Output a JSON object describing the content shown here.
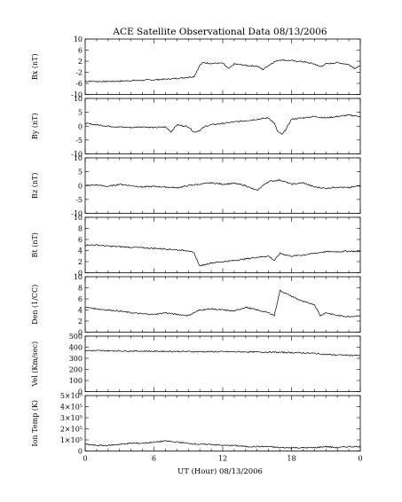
{
  "chart_data": {
    "type": "line",
    "title": "ACE Satellite Observational Data   08/13/2006",
    "xlabel": "UT (Hour)   08/13/2006",
    "x_ticks": [
      "0",
      "6",
      "12",
      "18",
      "0"
    ],
    "xlim": [
      0,
      24
    ],
    "panels": [
      {
        "id": "bx",
        "ylabel": "Bx (nT)",
        "ylim": [
          -10,
          10
        ],
        "y_ticks": [
          {
            "v": 10,
            "t": "10"
          },
          {
            "v": 6,
            "t": "6"
          },
          {
            "v": 2,
            "t": "2"
          },
          {
            "v": -2,
            "t": "-2"
          },
          {
            "v": -6,
            "t": "-6"
          },
          {
            "v": -10,
            "t": "-10"
          }
        ],
        "series": [
          {
            "x": [
              0,
              1,
              2,
              3,
              4,
              5,
              6,
              7,
              8,
              9,
              9.5,
              10,
              10.3,
              11,
              12,
              12.5,
              13,
              14,
              15,
              15.5,
              16,
              16.5,
              17,
              18,
              19,
              20,
              20.5,
              21,
              22,
              23,
              23.5,
              24
            ],
            "y": [
              -5.2,
              -5.3,
              -5.3,
              -5.2,
              -5.0,
              -4.9,
              -4.7,
              -4.5,
              -4.2,
              -3.8,
              -3.5,
              0.5,
              1.5,
              1.2,
              1.3,
              -0.8,
              1.0,
              0.5,
              0.2,
              -1.0,
              0.5,
              1.8,
              2.5,
              2.2,
              1.8,
              1.0,
              0.0,
              1.0,
              1.5,
              0.8,
              -0.5,
              0.2
            ]
          }
        ]
      },
      {
        "id": "by",
        "ylabel": "By (nT)",
        "ylim": [
          -10,
          10
        ],
        "y_ticks": [
          {
            "v": 10,
            "t": "10"
          },
          {
            "v": 5,
            "t": "5"
          },
          {
            "v": 0,
            "t": "0"
          },
          {
            "v": -5,
            "t": "-5"
          },
          {
            "v": -10,
            "t": "-10"
          }
        ],
        "series": [
          {
            "x": [
              0,
              1,
              2,
              3,
              4,
              5,
              6,
              7,
              7.5,
              8,
              9,
              9.5,
              10,
              10.5,
              11,
              12,
              13,
              14,
              15,
              16,
              16.5,
              16.8,
              17.2,
              17.6,
              18,
              19,
              20,
              21,
              22,
              23,
              24
            ],
            "y": [
              1.0,
              0.5,
              0.0,
              -0.3,
              -0.5,
              -0.2,
              -0.5,
              -0.3,
              -2.0,
              0.5,
              -0.2,
              -2.2,
              -1.5,
              0.0,
              0.5,
              1.0,
              1.5,
              2.0,
              2.5,
              3.0,
              1.0,
              -2.0,
              -3.0,
              -0.5,
              2.5,
              3.0,
              3.5,
              3.0,
              3.5,
              4.0,
              3.5
            ]
          }
        ]
      },
      {
        "id": "bz",
        "ylabel": "Bz (nT)",
        "ylim": [
          -10,
          10
        ],
        "y_ticks": [
          {
            "v": 10,
            "t": "10"
          },
          {
            "v": 5,
            "t": "5"
          },
          {
            "v": 0,
            "t": "0"
          },
          {
            "v": -5,
            "t": "-5"
          },
          {
            "v": -10,
            "t": "-10"
          }
        ],
        "series": [
          {
            "x": [
              0,
              1,
              2,
              3,
              4,
              5,
              6,
              7,
              8,
              9,
              10,
              11,
              12,
              13,
              14,
              14.5,
              15,
              15.5,
              16,
              17,
              18,
              19,
              20,
              21,
              22,
              23,
              24
            ],
            "y": [
              0.0,
              0.2,
              -0.3,
              0.5,
              0.0,
              -0.5,
              -0.3,
              -0.5,
              -0.8,
              0.0,
              0.5,
              1.0,
              0.5,
              0.8,
              0.0,
              -1.0,
              -1.8,
              0.0,
              1.5,
              2.0,
              0.5,
              1.0,
              -0.5,
              -1.0,
              -0.5,
              -0.8,
              0.0
            ]
          }
        ]
      },
      {
        "id": "bt",
        "ylabel": "Bt (nT)",
        "ylim": [
          0,
          10
        ],
        "y_ticks": [
          {
            "v": 10,
            "t": "10"
          },
          {
            "v": 8,
            "t": "8"
          },
          {
            "v": 6,
            "t": "6"
          },
          {
            "v": 4,
            "t": "4"
          },
          {
            "v": 2,
            "t": "2"
          },
          {
            "v": 0,
            "t": "0"
          }
        ],
        "series": [
          {
            "x": [
              0,
              1,
              2,
              3,
              4,
              5,
              6,
              7,
              8,
              9,
              9.5,
              10,
              10.5,
              11,
              12,
              13,
              14,
              15,
              16,
              16.5,
              17,
              17.5,
              18,
              19,
              20,
              21,
              22,
              23,
              24
            ],
            "y": [
              5.0,
              5.0,
              4.8,
              4.7,
              4.6,
              4.5,
              4.4,
              4.3,
              4.1,
              4.0,
              3.5,
              1.2,
              1.5,
              1.8,
              2.0,
              2.2,
              2.5,
              2.8,
              3.0,
              2.2,
              3.5,
              3.2,
              3.0,
              3.2,
              3.5,
              3.8,
              3.8,
              3.9,
              3.8
            ]
          }
        ]
      },
      {
        "id": "den",
        "ylabel": "Den (1/CC)",
        "ylim": [
          0,
          10
        ],
        "y_ticks": [
          {
            "v": 10,
            "t": "10"
          },
          {
            "v": 8,
            "t": "8"
          },
          {
            "v": 6,
            "t": "6"
          },
          {
            "v": 4,
            "t": "4"
          },
          {
            "v": 2,
            "t": "2"
          },
          {
            "v": 0,
            "t": "0"
          }
        ],
        "series": [
          {
            "x": [
              0,
              1,
              2,
              3,
              4,
              5,
              6,
              7,
              8,
              9,
              10,
              11,
              12,
              13,
              14,
              15,
              16,
              16.5,
              17,
              17.5,
              18,
              19,
              20,
              20.5,
              21,
              22,
              23,
              24
            ],
            "y": [
              4.5,
              4.2,
              4.0,
              3.8,
              3.5,
              3.3,
              3.2,
              3.5,
              3.2,
              3.0,
              4.0,
              4.2,
              4.0,
              3.8,
              4.5,
              4.0,
              3.5,
              3.0,
              7.5,
              7.0,
              6.5,
              5.5,
              5.0,
              3.0,
              3.5,
              3.0,
              2.8,
              3.0
            ]
          }
        ]
      },
      {
        "id": "vel",
        "ylabel": "Vel (Km/sec)",
        "ylim": [
          0,
          500
        ],
        "y_ticks": [
          {
            "v": 500,
            "t": "500"
          },
          {
            "v": 400,
            "t": "400"
          },
          {
            "v": 300,
            "t": "300"
          },
          {
            "v": 200,
            "t": "200"
          },
          {
            "v": 100,
            "t": "100"
          },
          {
            "v": 0,
            "t": "0"
          }
        ],
        "series": [
          {
            "x": [
              0,
              2,
              4,
              6,
              8,
              10,
              12,
              14,
              16,
              18,
              20,
              21,
              22,
              23,
              24
            ],
            "y": [
              370,
              368,
              366,
              364,
              362,
              360,
              360,
              358,
              356,
              352,
              345,
              335,
              330,
              328,
              325
            ]
          }
        ]
      },
      {
        "id": "temp",
        "ylabel": "Ion Temp (K)",
        "ylim": [
          0,
          500000
        ],
        "y_ticks": [
          {
            "v": 500000,
            "t": "5×10⁵"
          },
          {
            "v": 400000,
            "t": "4×10⁵"
          },
          {
            "v": 300000,
            "t": "3×10⁵"
          },
          {
            "v": 200000,
            "t": "2×10⁵"
          },
          {
            "v": 100000,
            "t": "1×10⁵"
          },
          {
            "v": 0,
            "t": "0"
          }
        ],
        "series": [
          {
            "x": [
              0,
              1,
              2,
              3,
              4,
              5,
              6,
              7,
              8,
              9,
              10,
              11,
              12,
              13,
              14,
              15,
              16,
              17,
              18,
              19,
              20,
              21,
              22,
              23,
              24
            ],
            "y": [
              60000,
              50000,
              50000,
              60000,
              70000,
              70000,
              80000,
              90000,
              80000,
              70000,
              60000,
              60000,
              50000,
              50000,
              40000,
              40000,
              40000,
              30000,
              30000,
              30000,
              30000,
              40000,
              30000,
              40000,
              40000
            ]
          }
        ]
      }
    ]
  }
}
